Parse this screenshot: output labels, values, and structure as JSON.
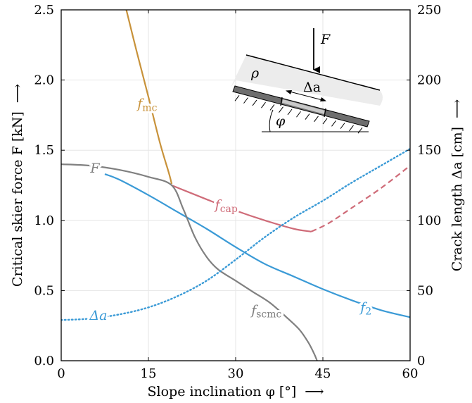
{
  "chart_data": {
    "type": "line",
    "xlabel": "Slope inclination φ [°]",
    "ylabel_left": "Critical skier force F [kN]",
    "ylabel_right": "Crack length Δa [cm]",
    "xlim": [
      0,
      60
    ],
    "ylim_left": [
      0,
      2.5
    ],
    "ylim_right": [
      0,
      250
    ],
    "x_ticks": [
      "0",
      "15",
      "30",
      "45",
      "60"
    ],
    "y_ticks_left": [
      "0.0",
      "0.5",
      "1.0",
      "1.5",
      "2.0",
      "2.5"
    ],
    "y_ticks_right": [
      "0",
      "50",
      "100",
      "150",
      "200",
      "250"
    ],
    "grid": true,
    "arrow": "⟶",
    "colors": {
      "f_mc": "#c8923a",
      "f_cap": "#cf6b78",
      "f_2": "#3a9ad6",
      "F": "#808080",
      "delta_a": "#3a9ad6"
    },
    "series": [
      {
        "key": "f_mc",
        "axis": "left",
        "style": "solid",
        "points": [
          [
            11.2,
            2.5
          ],
          [
            13,
            2.2
          ],
          [
            15,
            1.88
          ],
          [
            17,
            1.55
          ],
          [
            18.5,
            1.34
          ],
          [
            19,
            1.26
          ]
        ]
      },
      {
        "key": "f_cap",
        "axis": "left",
        "style": "solid",
        "points": [
          [
            19,
            1.25
          ],
          [
            25,
            1.15
          ],
          [
            30,
            1.07
          ],
          [
            35,
            1.0
          ],
          [
            40,
            0.94
          ],
          [
            43,
            0.92
          ]
        ]
      },
      {
        "key": "f_cap_dashed",
        "axis": "left",
        "style": "dashed",
        "color_key": "f_cap",
        "points": [
          [
            43,
            0.92
          ],
          [
            46,
            0.98
          ],
          [
            50,
            1.09
          ],
          [
            55,
            1.23
          ],
          [
            60,
            1.39
          ]
        ]
      },
      {
        "key": "f_2",
        "axis": "left",
        "style": "solid",
        "points": [
          [
            7.5,
            1.33
          ],
          [
            10,
            1.29
          ],
          [
            15,
            1.18
          ],
          [
            20,
            1.06
          ],
          [
            25,
            0.94
          ],
          [
            30,
            0.81
          ],
          [
            35,
            0.69
          ],
          [
            40,
            0.6
          ],
          [
            45,
            0.51
          ],
          [
            50,
            0.43
          ],
          [
            55,
            0.36
          ],
          [
            60,
            0.31
          ]
        ]
      },
      {
        "key": "F",
        "axis": "left",
        "style": "solid",
        "points": [
          [
            0,
            1.4
          ],
          [
            5,
            1.39
          ],
          [
            10,
            1.36
          ],
          [
            15,
            1.31
          ],
          [
            19,
            1.25
          ],
          [
            21,
            1.08
          ],
          [
            23,
            0.88
          ],
          [
            25,
            0.74
          ],
          [
            27,
            0.65
          ],
          [
            30,
            0.57
          ],
          [
            33,
            0.49
          ],
          [
            36,
            0.41
          ],
          [
            39,
            0.3
          ],
          [
            41,
            0.22
          ],
          [
            42.5,
            0.13
          ],
          [
            43.5,
            0.05
          ],
          [
            44,
            0.0
          ]
        ]
      },
      {
        "key": "delta_a",
        "axis": "right",
        "style": "dotted",
        "points": [
          [
            0,
            29
          ],
          [
            5,
            30
          ],
          [
            10,
            33
          ],
          [
            15,
            38
          ],
          [
            20,
            46
          ],
          [
            25,
            57
          ],
          [
            30,
            72
          ],
          [
            35,
            88
          ],
          [
            40,
            102
          ],
          [
            45,
            114
          ],
          [
            50,
            127
          ],
          [
            55,
            139
          ],
          [
            60,
            151
          ]
        ]
      }
    ],
    "labels": [
      {
        "key": "f_mc",
        "base": "f",
        "sub": "mc",
        "x": 14.8,
        "y": 1.8,
        "color_key": "f_mc"
      },
      {
        "key": "f_cap",
        "base": "f",
        "sub": "cap",
        "x": 28.4,
        "y": 1.08,
        "color_key": "f_cap"
      },
      {
        "key": "F",
        "base": "F",
        "sub": "",
        "x": 5.8,
        "y": 1.34,
        "color_key": "F"
      },
      {
        "key": "f_scmc",
        "base": "f",
        "sub": "scmc",
        "x": 35.3,
        "y": 0.33,
        "color_key": "F"
      },
      {
        "key": "f_2",
        "base": "f",
        "sub": "2",
        "x": 52.4,
        "y": 0.35,
        "color_key": "f_2"
      },
      {
        "key": "delta_a",
        "base": "Δa",
        "sub": "",
        "x": 6.4,
        "y": 0.29,
        "color_key": "delta_a"
      }
    ],
    "inset": {
      "force_label": "F",
      "density_label": "ρ",
      "crack_label": "Δa",
      "angle_label": "φ"
    }
  }
}
